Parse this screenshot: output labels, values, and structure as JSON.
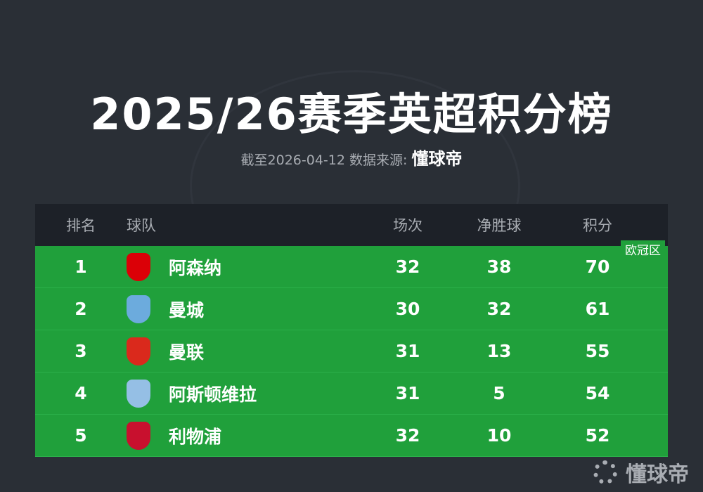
{
  "title": "2025/26赛季英超积分榜",
  "subtitle": {
    "prefix": "截至2026-04-12 数据来源:",
    "brand": "懂球帝"
  },
  "headers": [
    "排名",
    "球队",
    "场次",
    "净胜球",
    "积分"
  ],
  "zone_label": "欧冠区",
  "rows": [
    {
      "rank": "1",
      "team": "阿森纳",
      "played": "32",
      "gd": "38",
      "pts": "70",
      "badge": "arsenal-crest",
      "color": "#db0007"
    },
    {
      "rank": "2",
      "team": "曼城",
      "played": "30",
      "gd": "32",
      "pts": "61",
      "badge": "man-city-crest",
      "color": "#6cabdd"
    },
    {
      "rank": "3",
      "team": "曼联",
      "played": "31",
      "gd": "13",
      "pts": "55",
      "badge": "man-united-crest",
      "color": "#da291c"
    },
    {
      "rank": "4",
      "team": "阿斯顿维拉",
      "played": "31",
      "gd": "5",
      "pts": "54",
      "badge": "aston-villa-crest",
      "color": "#95bfe5"
    },
    {
      "rank": "5",
      "team": "利物浦",
      "played": "32",
      "gd": "10",
      "pts": "52",
      "badge": "liverpool-crest",
      "color": "#c8102e"
    }
  ],
  "watermark": "懂球帝",
  "colors": {
    "background": "#2a2f36",
    "header": "#1d2128",
    "zone": "#20a03b"
  }
}
